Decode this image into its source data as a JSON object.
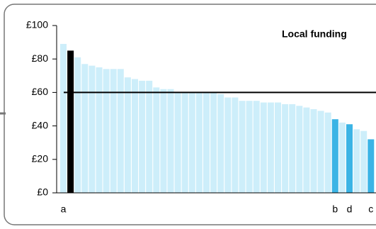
{
  "chart_data": {
    "type": "bar",
    "title": "Local funding",
    "categories": [
      "a",
      null,
      null,
      null,
      null,
      null,
      null,
      null,
      null,
      null,
      null,
      null,
      null,
      null,
      null,
      null,
      null,
      null,
      null,
      null,
      null,
      null,
      null,
      null,
      null,
      null,
      null,
      null,
      null,
      null,
      null,
      null,
      null,
      null,
      null,
      null,
      null,
      null,
      "b",
      null,
      "d",
      null,
      null,
      "c"
    ],
    "values": [
      89,
      85,
      81,
      77,
      76,
      75,
      74,
      74,
      74,
      69,
      68,
      67,
      67,
      63,
      62,
      62,
      60,
      60,
      60,
      60,
      60,
      60,
      59,
      57,
      57,
      55,
      55,
      55,
      54,
      54,
      54,
      53,
      53,
      52,
      51,
      50,
      49,
      48,
      44,
      42,
      41,
      38,
      37,
      32
    ],
    "bar_colors": [
      "#cdeefa",
      "#000000",
      "#cdeefa",
      "#cdeefa",
      "#cdeefa",
      "#cdeefa",
      "#cdeefa",
      "#cdeefa",
      "#cdeefa",
      "#cdeefa",
      "#cdeefa",
      "#cdeefa",
      "#cdeefa",
      "#cdeefa",
      "#cdeefa",
      "#cdeefa",
      "#cdeefa",
      "#cdeefa",
      "#cdeefa",
      "#cdeefa",
      "#cdeefa",
      "#cdeefa",
      "#cdeefa",
      "#cdeefa",
      "#cdeefa",
      "#cdeefa",
      "#cdeefa",
      "#cdeefa",
      "#cdeefa",
      "#cdeefa",
      "#cdeefa",
      "#cdeefa",
      "#cdeefa",
      "#cdeefa",
      "#cdeefa",
      "#cdeefa",
      "#cdeefa",
      "#cdeefa",
      "#3bb4e5",
      "#cdeefa",
      "#3bb4e5",
      "#cdeefa",
      "#cdeefa",
      "#3bb4e5"
    ],
    "reference_line": 60,
    "ylim": [
      0,
      100
    ],
    "yticks": [
      {
        "value": 0,
        "label": "£0"
      },
      {
        "value": 20,
        "label": "£20"
      },
      {
        "value": 40,
        "label": "£40"
      },
      {
        "value": 60,
        "label": "£60"
      },
      {
        "value": 80,
        "label": "£80"
      },
      {
        "value": 100,
        "label": "£100"
      }
    ]
  }
}
